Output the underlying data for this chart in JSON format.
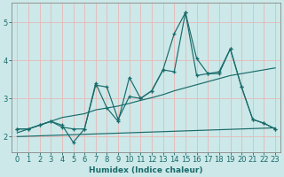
{
  "xlabel": "Humidex (Indice chaleur)",
  "bg_color": "#cce8e8",
  "grid_color": "#e8b8b8",
  "line_color": "#1a6b6b",
  "spine_color": "#888888",
  "x": [
    0,
    1,
    2,
    3,
    4,
    5,
    6,
    7,
    8,
    9,
    10,
    11,
    12,
    13,
    14,
    15,
    16,
    17,
    18,
    19,
    20,
    21,
    22,
    23
  ],
  "line1": [
    2.2,
    2.2,
    2.3,
    2.4,
    2.25,
    2.2,
    2.2,
    3.35,
    3.3,
    2.45,
    3.05,
    3.0,
    3.2,
    3.75,
    4.7,
    5.25,
    4.05,
    3.65,
    3.7,
    4.3,
    3.3,
    2.45,
    2.35,
    2.2
  ],
  "line2": [
    2.2,
    2.2,
    2.3,
    2.4,
    2.3,
    1.85,
    2.2,
    3.4,
    2.75,
    2.4,
    3.55,
    3.0,
    3.2,
    3.75,
    3.7,
    5.25,
    3.6,
    3.65,
    3.65,
    4.3,
    3.3,
    2.45,
    2.35,
    2.2
  ],
  "line3": [
    2.1,
    2.2,
    2.3,
    2.4,
    2.5,
    2.55,
    2.6,
    2.7,
    2.75,
    2.8,
    2.87,
    2.95,
    3.02,
    3.1,
    3.2,
    3.28,
    3.36,
    3.44,
    3.52,
    3.6,
    3.65,
    3.7,
    3.75,
    3.8
  ],
  "line4": [
    2.0,
    2.01,
    2.02,
    2.03,
    2.04,
    2.05,
    2.06,
    2.07,
    2.08,
    2.09,
    2.1,
    2.11,
    2.12,
    2.13,
    2.14,
    2.15,
    2.16,
    2.17,
    2.18,
    2.19,
    2.2,
    2.21,
    2.22,
    2.23
  ],
  "ylim": [
    1.6,
    5.5
  ],
  "yticks": [
    2,
    3,
    4,
    5
  ],
  "xticks": [
    0,
    1,
    2,
    3,
    4,
    5,
    6,
    7,
    8,
    9,
    10,
    11,
    12,
    13,
    14,
    15,
    16,
    17,
    18,
    19,
    20,
    21,
    22,
    23
  ],
  "xlabel_fontsize": 6.5,
  "tick_labelsize": 6
}
